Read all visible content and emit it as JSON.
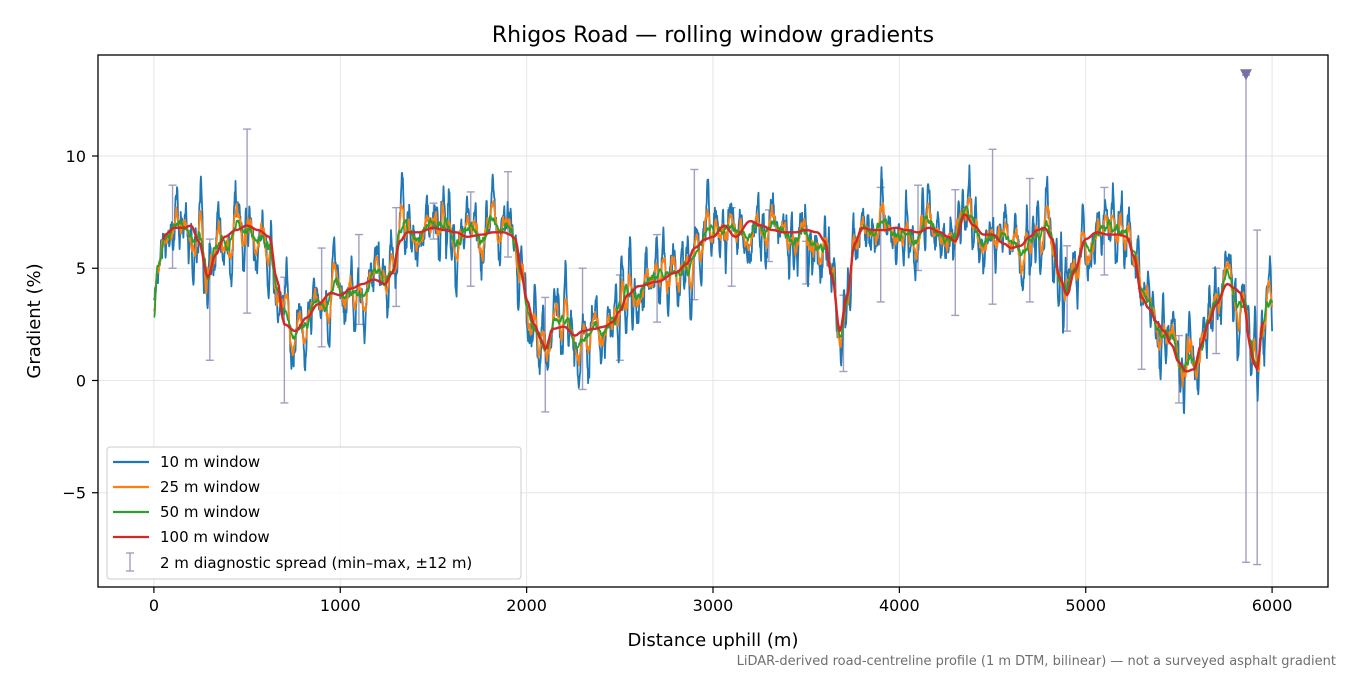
{
  "chart_data": {
    "type": "line",
    "title": "Rhigos Road — rolling window gradients",
    "xlabel": "Distance uphill (m)",
    "ylabel": "Gradient (%)",
    "caption": "LiDAR-derived road-centreline profile (1 m DTM, bilinear) — not a surveyed asphalt gradient",
    "xlim": [
      -300,
      6300
    ],
    "ylim": [
      -9.2,
      14.5
    ],
    "xticks": [
      0,
      1000,
      2000,
      3000,
      4000,
      5000,
      6000
    ],
    "xtick_labels": [
      "0",
      "1000",
      "2000",
      "3000",
      "4000",
      "5000",
      "6000"
    ],
    "yticks": [
      -5,
      0,
      5,
      10
    ],
    "ytick_labels": [
      "−5",
      "0",
      "5",
      "10"
    ],
    "grid": true,
    "legend_position": "lower-left",
    "profile_x": [
      0,
      20,
      60,
      110,
      160,
      200,
      240,
      290,
      330,
      380,
      440,
      500,
      560,
      620,
      660,
      700,
      760,
      820,
      880,
      950,
      1000,
      1060,
      1120,
      1180,
      1240,
      1280,
      1320,
      1360,
      1420,
      1500,
      1560,
      1620,
      1680,
      1760,
      1820,
      1880,
      1910,
      1940,
      1970,
      2000,
      2040,
      2080,
      2100,
      2140,
      2200,
      2260,
      2300,
      2360,
      2420,
      2460,
      2500,
      2540,
      2600,
      2700,
      2800,
      2860,
      2900,
      2960,
      3000,
      3060,
      3120,
      3200,
      3260,
      3320,
      3380,
      3440,
      3500,
      3560,
      3600,
      3640,
      3680,
      3720,
      3760,
      3800,
      3860,
      3920,
      3980,
      4040,
      4100,
      4160,
      4220,
      4260,
      4300,
      4350,
      4400,
      4450,
      4500,
      4560,
      4600,
      4650,
      4700,
      4740,
      4780,
      4820,
      4860,
      4900,
      4940,
      5000,
      5060,
      5120,
      5180,
      5220,
      5260,
      5300,
      5340,
      5380,
      5420,
      5460,
      5500,
      5540,
      5580,
      5620,
      5660,
      5700,
      5760,
      5800,
      5830,
      5850,
      5880,
      5900,
      5920,
      5950,
      5980,
      6000
    ],
    "profile_y": [
      2.6,
      5.0,
      6.5,
      6.8,
      6.8,
      6.9,
      6.2,
      4.6,
      5.6,
      6.4,
      6.7,
      6.9,
      6.7,
      6.4,
      4.5,
      2.5,
      2.2,
      2.8,
      3.4,
      3.9,
      3.8,
      4.1,
      4.3,
      4.5,
      4.3,
      4.8,
      6.2,
      6.6,
      6.6,
      6.8,
      6.7,
      6.6,
      6.4,
      6.5,
      6.6,
      6.6,
      6.5,
      6.3,
      4.9,
      3.6,
      2.5,
      1.8,
      1.4,
      2.3,
      2.4,
      2.0,
      2.2,
      2.3,
      2.4,
      2.6,
      3.1,
      3.8,
      4.2,
      4.4,
      4.8,
      5.2,
      5.9,
      6.3,
      6.4,
      6.9,
      6.4,
      7.1,
      6.9,
      6.7,
      6.6,
      6.6,
      6.7,
      6.6,
      6.2,
      4.6,
      2.2,
      3.8,
      6.1,
      6.8,
      6.7,
      6.7,
      6.8,
      6.7,
      6.6,
      6.8,
      6.6,
      6.4,
      6.2,
      7.4,
      6.9,
      6.5,
      6.5,
      6.1,
      5.9,
      6.0,
      6.4,
      6.7,
      6.8,
      6.3,
      4.6,
      3.8,
      4.9,
      6.3,
      6.6,
      6.5,
      6.5,
      6.4,
      5.5,
      3.7,
      3.2,
      2.6,
      2.2,
      1.6,
      0.8,
      0.4,
      0.5,
      1.6,
      2.6,
      3.4,
      4.3,
      4.1,
      3.9,
      3.4,
      1.6,
      0.8,
      0.5,
      2.6,
      3.6,
      4.3
    ],
    "series": [
      {
        "name": "10 m window",
        "color": "#1f77b4",
        "window": 10
      },
      {
        "name": "25 m window",
        "color": "#ff7f0e",
        "window": 25
      },
      {
        "name": "50 m window",
        "color": "#2ca02c",
        "window": 50
      },
      {
        "name": "100 m window",
        "color": "#d62728",
        "window": 100
      }
    ],
    "diagnostic": {
      "name": "2 m diagnostic spread (min–max, ±12 m)",
      "color": "#9f9fc2",
      "x": [
        100,
        300,
        500,
        700,
        900,
        1100,
        1300,
        1500,
        1700,
        1900,
        2100,
        2300,
        2500,
        2700,
        2900,
        3100,
        3300,
        3500,
        3700,
        3900,
        4100,
        4300,
        4500,
        4700,
        4900,
        5100,
        5300,
        5500,
        5700,
        5860,
        5920
      ],
      "min": [
        5.0,
        0.9,
        3.0,
        -1.0,
        1.5,
        2.5,
        3.3,
        6.3,
        4.2,
        5.5,
        -1.4,
        -0.4,
        0.9,
        2.6,
        3.6,
        4.2,
        5.3,
        4.3,
        0.4,
        3.5,
        4.9,
        2.9,
        3.4,
        3.5,
        2.2,
        4.7,
        0.5,
        -1.0,
        1.2,
        -8.1,
        -8.2
      ],
      "max": [
        8.7,
        6.3,
        11.2,
        4.6,
        5.9,
        6.5,
        7.7,
        7.9,
        8.4,
        9.3,
        3.7,
        5.0,
        4.7,
        6.5,
        9.4,
        7.7,
        7.6,
        6.2,
        3.8,
        8.6,
        8.7,
        8.5,
        10.3,
        9.0,
        6.0,
        8.6,
        4.1,
        2.0,
        5.0,
        13.6,
        6.7
      ],
      "outlier_marker": {
        "x": 5860,
        "y": 13.6,
        "shape": "triangle-down",
        "color": "#7b6ea8"
      }
    }
  }
}
